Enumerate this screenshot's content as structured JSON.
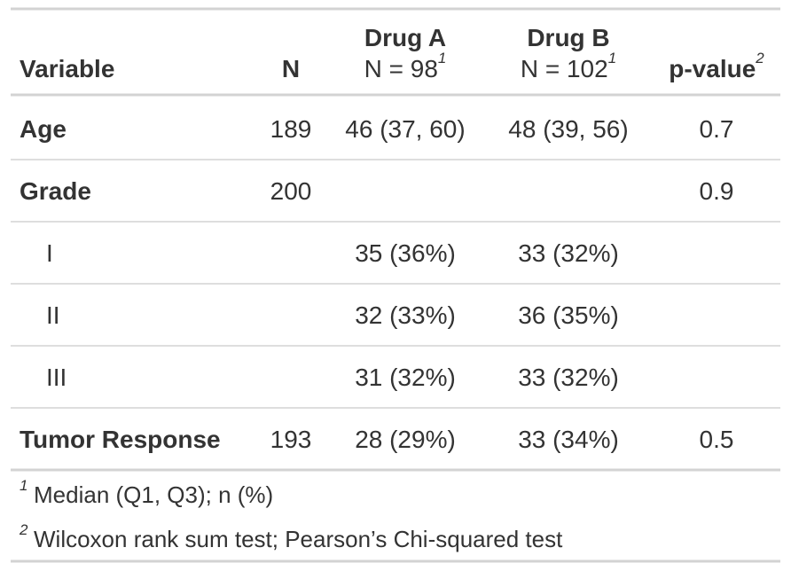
{
  "table": {
    "columns": [
      {
        "label": "Variable"
      },
      {
        "label": "N"
      },
      {
        "label": "Drug A",
        "sublabel": "N = 98",
        "footnote": "1"
      },
      {
        "label": "Drug B",
        "sublabel": "N = 102",
        "footnote": "1"
      },
      {
        "label": "p-value",
        "footnote": "2"
      }
    ],
    "rows": [
      {
        "label": "Age",
        "n": "189",
        "drug_a": "46 (37, 60)",
        "drug_b": "48 (39, 56)",
        "p": "0.7"
      },
      {
        "label": "Grade",
        "n": "200",
        "p": "0.9",
        "levels": [
          {
            "label": "I",
            "drug_a": "35 (36%)",
            "drug_b": "33 (32%)"
          },
          {
            "label": "II",
            "drug_a": "32 (33%)",
            "drug_b": "36 (35%)"
          },
          {
            "label": "III",
            "drug_a": "31 (32%)",
            "drug_b": "33 (32%)"
          }
        ]
      },
      {
        "label": "Tumor Response",
        "n": "193",
        "drug_a": "28 (29%)",
        "drug_b": "33 (34%)",
        "p": "0.5"
      }
    ],
    "footnotes": [
      {
        "mark": "1",
        "text": "Median (Q1, Q3); n (%)"
      },
      {
        "mark": "2",
        "text": "Wilcoxon rank sum test; Pearson’s Chi-squared test"
      }
    ]
  }
}
